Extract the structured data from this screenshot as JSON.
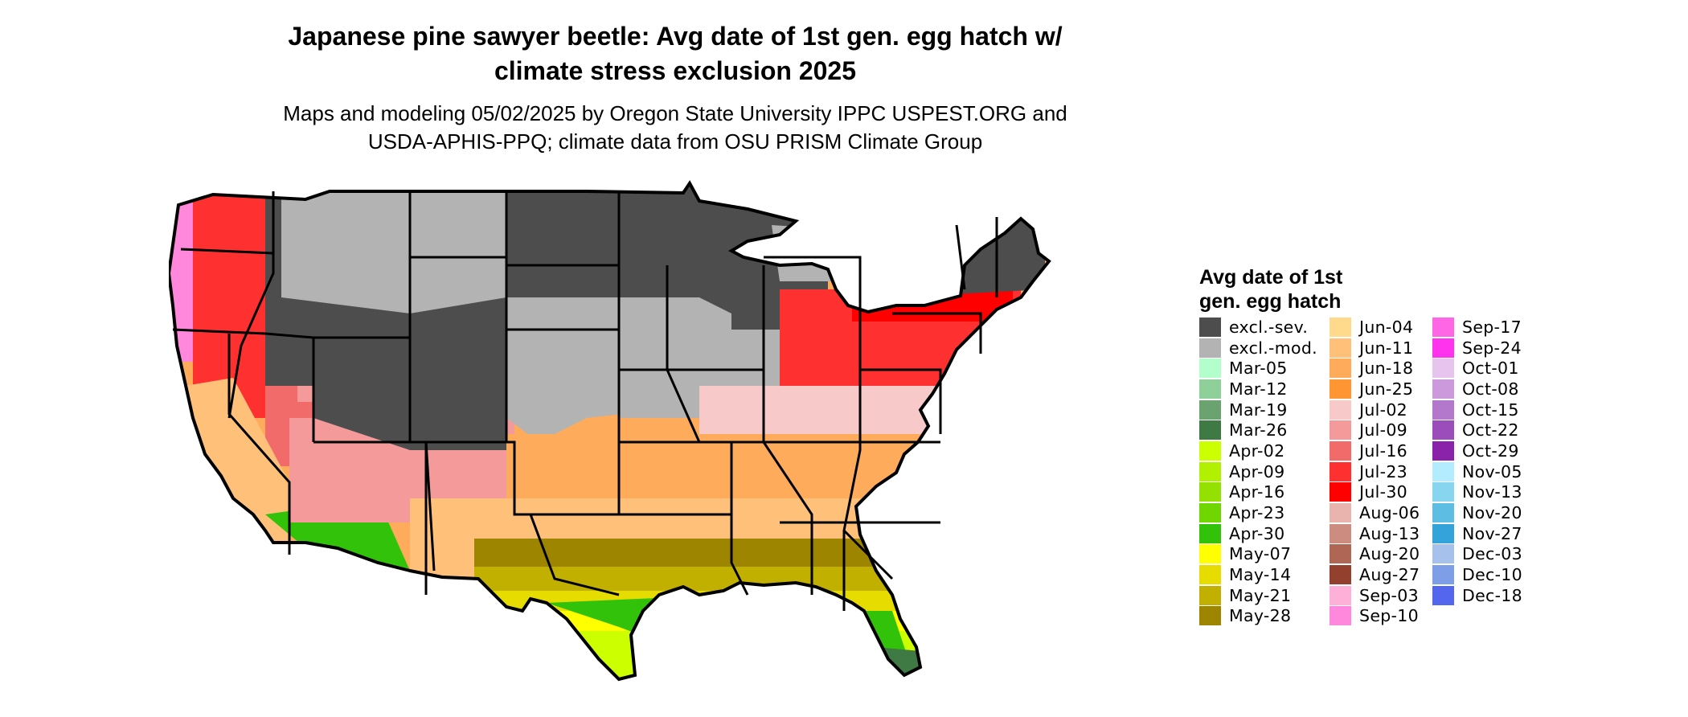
{
  "title": {
    "line1": "Japanese pine sawyer beetle: Avg date of 1st gen. egg hatch w/",
    "line2": "climate stress exclusion 2025"
  },
  "subtitle": {
    "line1": "Maps and modeling 05/02/2025 by Oregon State University IPPC USPEST.ORG and",
    "line2": "USDA-APHIS-PPQ; climate data from OSU PRISM Climate Group"
  },
  "map": {
    "region": "contiguous-united-states",
    "colors": {
      "excl_sev": "#4d4d4d",
      "excl_mod": "#b3b3b3",
      "state_border": "#000000"
    }
  },
  "legend": {
    "title_line1": "Avg date of 1st",
    "title_line2": "gen. egg hatch",
    "columns": [
      [
        {
          "label": "excl.-sev.",
          "color": "#4d4d4d"
        },
        {
          "label": "excl.-mod.",
          "color": "#b3b3b3"
        },
        {
          "label": "Mar-05",
          "color": "#b3ffcc"
        },
        {
          "label": "Mar-12",
          "color": "#8fcf9a"
        },
        {
          "label": "Mar-19",
          "color": "#6aa36f"
        },
        {
          "label": "Mar-26",
          "color": "#3f7a45"
        },
        {
          "label": "Apr-02",
          "color": "#ccff00"
        },
        {
          "label": "Apr-09",
          "color": "#b0f000"
        },
        {
          "label": "Apr-16",
          "color": "#94e000"
        },
        {
          "label": "Apr-23",
          "color": "#6fd600"
        },
        {
          "label": "Apr-30",
          "color": "#33c20a"
        },
        {
          "label": "May-07",
          "color": "#ffff00"
        },
        {
          "label": "May-14",
          "color": "#e6dc00"
        },
        {
          "label": "May-21",
          "color": "#c2b000"
        },
        {
          "label": "May-28",
          "color": "#9e8500"
        }
      ],
      [
        {
          "label": "Jun-04",
          "color": "#ffd98c"
        },
        {
          "label": "Jun-11",
          "color": "#ffc07a"
        },
        {
          "label": "Jun-18",
          "color": "#ffab5c"
        },
        {
          "label": "Jun-25",
          "color": "#ff9533"
        },
        {
          "label": "Jul-02",
          "color": "#f7c9c9"
        },
        {
          "label": "Jul-09",
          "color": "#f59a9a"
        },
        {
          "label": "Jul-16",
          "color": "#f26b6b"
        },
        {
          "label": "Jul-23",
          "color": "#ff3030"
        },
        {
          "label": "Jul-30",
          "color": "#ff0000"
        },
        {
          "label": "Aug-06",
          "color": "#e8b4ad"
        },
        {
          "label": "Aug-13",
          "color": "#cc8c80"
        },
        {
          "label": "Aug-20",
          "color": "#b06655"
        },
        {
          "label": "Aug-27",
          "color": "#94402e"
        },
        {
          "label": "Sep-03",
          "color": "#ffb0d9"
        },
        {
          "label": "Sep-10",
          "color": "#ff88dd"
        }
      ],
      [
        {
          "label": "Sep-17",
          "color": "#ff66e6"
        },
        {
          "label": "Sep-24",
          "color": "#ff33ee"
        },
        {
          "label": "Oct-01",
          "color": "#e6c4ee"
        },
        {
          "label": "Oct-08",
          "color": "#cc99dd"
        },
        {
          "label": "Oct-15",
          "color": "#b377cc"
        },
        {
          "label": "Oct-22",
          "color": "#9a4dbb"
        },
        {
          "label": "Oct-29",
          "color": "#8a22aa"
        },
        {
          "label": "Nov-05",
          "color": "#b3ecff"
        },
        {
          "label": "Nov-13",
          "color": "#88d5f0"
        },
        {
          "label": "Nov-20",
          "color": "#5ebde3"
        },
        {
          "label": "Nov-27",
          "color": "#33a3d9"
        },
        {
          "label": "Dec-03",
          "color": "#a6c2ec"
        },
        {
          "label": "Dec-10",
          "color": "#7e9ee8"
        },
        {
          "label": "Dec-18",
          "color": "#5566ee"
        }
      ]
    ]
  }
}
